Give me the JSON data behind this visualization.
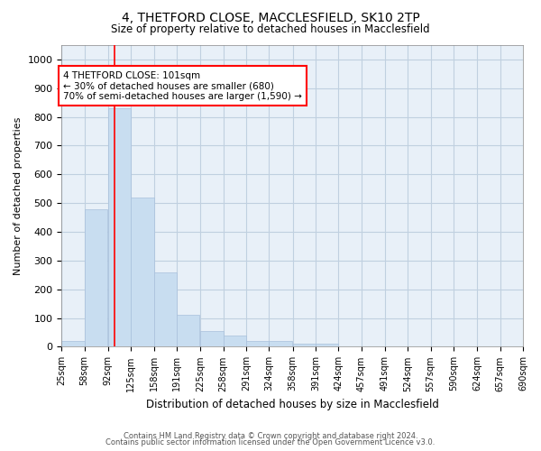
{
  "title_line1": "4, THETFORD CLOSE, MACCLESFIELD, SK10 2TP",
  "title_line2": "Size of property relative to detached houses in Macclesfield",
  "xlabel": "Distribution of detached houses by size in Macclesfield",
  "ylabel": "Number of detached properties",
  "bins_left": [
    25,
    58,
    92,
    125,
    158,
    191,
    225,
    258,
    291,
    324,
    358,
    391,
    424,
    457,
    491,
    524,
    557,
    590,
    624,
    657
  ],
  "bin_width": 33,
  "bar_heights": [
    20,
    480,
    830,
    520,
    260,
    110,
    55,
    40,
    20,
    20,
    10,
    10,
    0,
    0,
    0,
    0,
    0,
    0,
    0,
    0
  ],
  "bar_color": "#c8ddf0",
  "bar_edgecolor": "#a8c0dc",
  "grid_color": "#c0d0e0",
  "background_color": "#e8f0f8",
  "property_line_x": 101,
  "property_line_color": "red",
  "annotation_text": "4 THETFORD CLOSE: 101sqm\n← 30% of detached houses are smaller (680)\n70% of semi-detached houses are larger (1,590) →",
  "annotation_box_facecolor": "white",
  "annotation_box_edgecolor": "red",
  "ylim": [
    0,
    1050
  ],
  "yticks": [
    0,
    100,
    200,
    300,
    400,
    500,
    600,
    700,
    800,
    900,
    1000
  ],
  "tick_labels": [
    "25sqm",
    "58sqm",
    "92sqm",
    "125sqm",
    "158sqm",
    "191sqm",
    "225sqm",
    "258sqm",
    "291sqm",
    "324sqm",
    "358sqm",
    "391sqm",
    "424sqm",
    "457sqm",
    "491sqm",
    "524sqm",
    "557sqm",
    "590sqm",
    "624sqm",
    "657sqm",
    "690sqm"
  ],
  "footer_line1": "Contains HM Land Registry data © Crown copyright and database right 2024.",
  "footer_line2": "Contains public sector information licensed under the Open Government Licence v3.0."
}
